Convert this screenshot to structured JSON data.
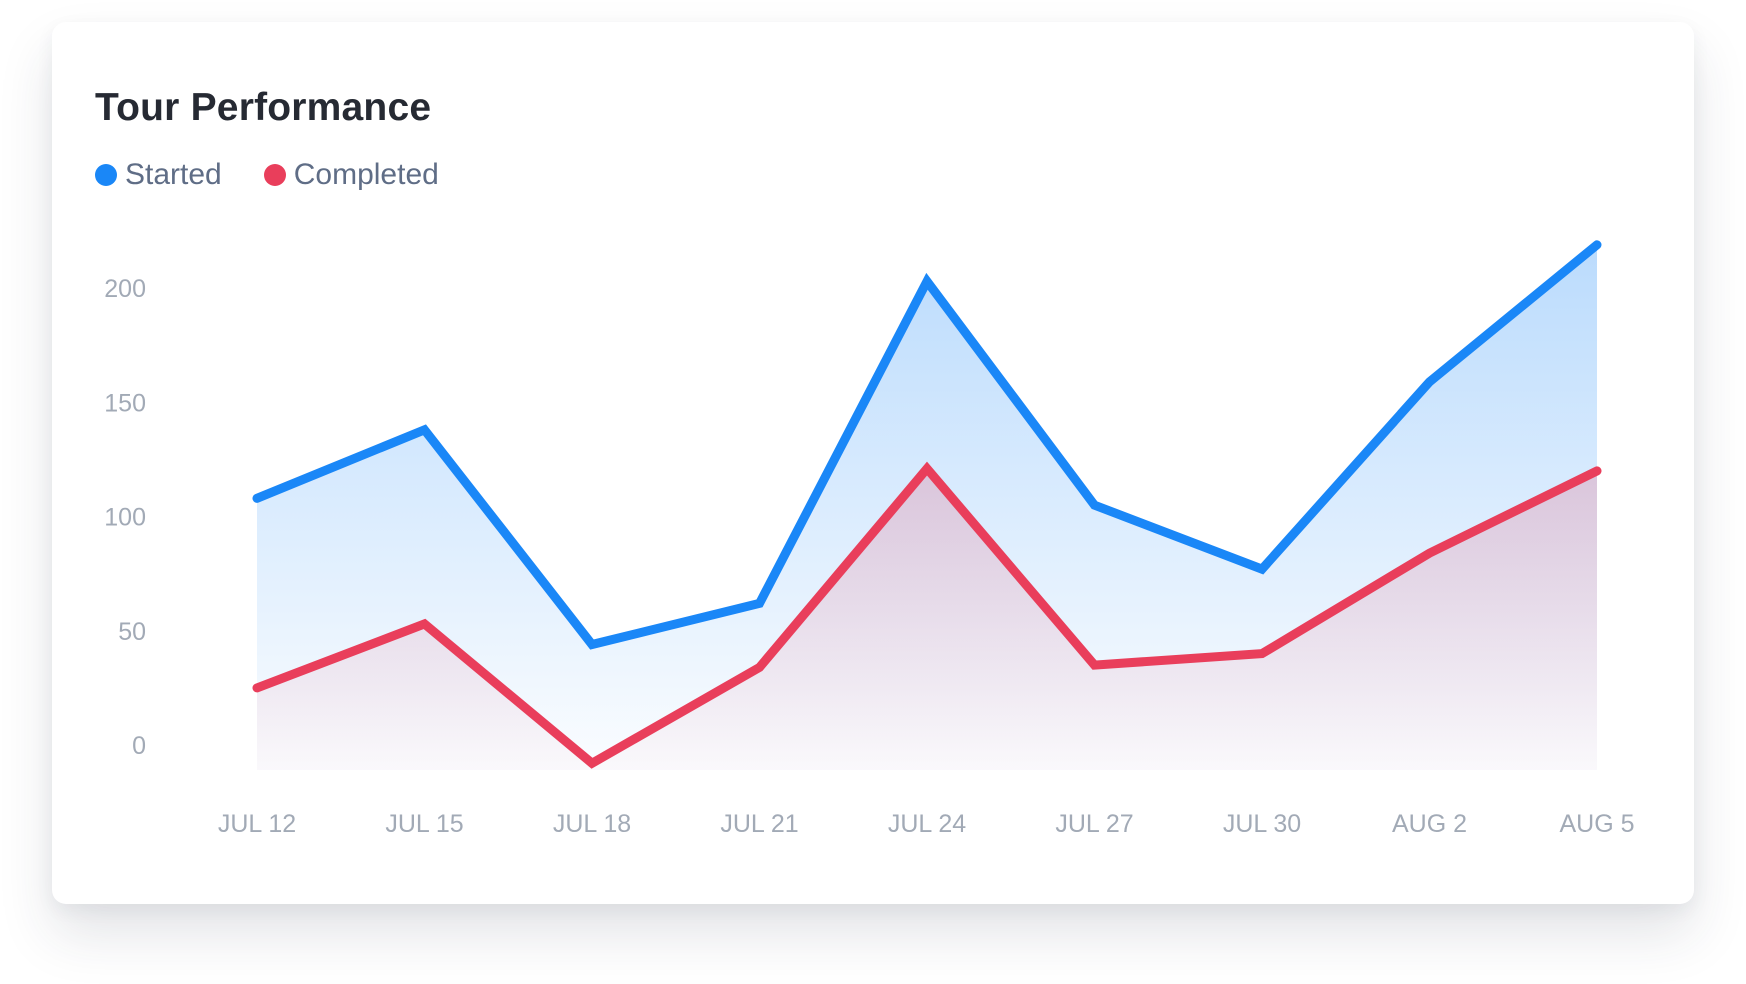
{
  "title": "Tour Performance",
  "colors": {
    "started": "#1a87f7",
    "completed": "#e93e5b"
  },
  "chart_data": {
    "type": "area",
    "title": "Tour Performance",
    "x": [
      "JUL 12",
      "JUL 15",
      "JUL 18",
      "JUL 21",
      "JUL 24",
      "JUL 27",
      "JUL 30",
      "AUG 2",
      "AUG 5"
    ],
    "series": [
      {
        "name": "Started",
        "values": [
          108,
          138,
          44,
          62,
          203,
          105,
          77,
          159,
          219
        ]
      },
      {
        "name": "Completed",
        "values": [
          25,
          53,
          -8,
          34,
          121,
          35,
          40,
          84,
          120
        ]
      }
    ],
    "yticks": [
      0,
      50,
      100,
      150,
      200
    ],
    "ylim": [
      -10,
      230
    ],
    "xlabel": "",
    "ylabel": "",
    "grid": false,
    "legend": "top-left"
  }
}
